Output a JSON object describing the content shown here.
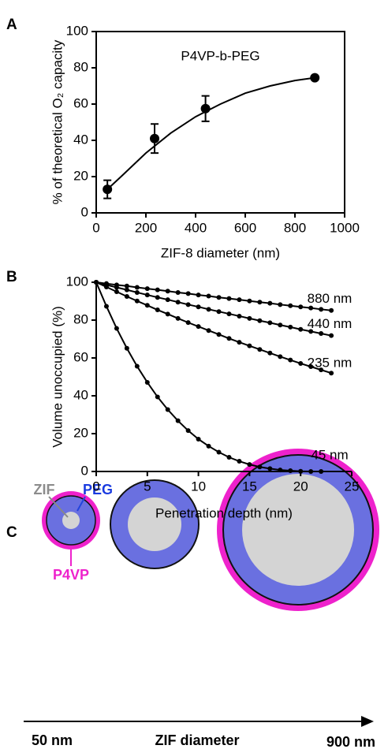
{
  "chart_data": [
    {
      "type": "scatter",
      "panel_label": "A",
      "title": "P4VP-b-PEG",
      "x_label": "ZIF-8 diameter (nm)",
      "y_label": "% of theoretical O₂ capacity",
      "x": [
        45,
        235,
        440,
        880
      ],
      "values": [
        13,
        41,
        57.5,
        74.5
      ],
      "errors": [
        5,
        8,
        7,
        0
      ],
      "color": "#000000",
      "fit": {
        "x": [
          45,
          100,
          200,
          300,
          400,
          500,
          600,
          700,
          800,
          880
        ],
        "values": [
          13,
          20,
          33,
          44,
          53,
          60,
          66,
          70,
          73,
          74.5
        ]
      },
      "xlim": [
        0,
        1000
      ],
      "xticks": [
        0,
        200,
        400,
        600,
        800,
        1000
      ],
      "ylim": [
        0,
        100
      ],
      "yticks": [
        0,
        20,
        40,
        60,
        80,
        100
      ],
      "frame": true
    },
    {
      "type": "line",
      "panel_label": "B",
      "x_label": "Penetration depth (nm)",
      "y_label": "Volume unoccupied (%)",
      "x": [
        0,
        1,
        2,
        3,
        4,
        5,
        6,
        7,
        8,
        9,
        10,
        11,
        12,
        13,
        14,
        15,
        16,
        17,
        18,
        19,
        20,
        21,
        22,
        23
      ],
      "series": [
        {
          "name": "880 nm",
          "color": "#000000",
          "values": [
            100,
            99.3,
            98.6,
            98.0,
            97.3,
            96.6,
            96.0,
            95.3,
            94.6,
            94.0,
            93.3,
            92.7,
            92.0,
            91.4,
            90.8,
            90.1,
            89.5,
            88.9,
            88.2,
            87.6,
            87.0,
            86.4,
            85.7,
            85.1
          ]
        },
        {
          "name": "440 nm",
          "color": "#000000",
          "values": [
            100,
            98.6,
            97.3,
            96.0,
            94.6,
            93.3,
            92.0,
            90.8,
            89.5,
            88.2,
            87.0,
            85.7,
            84.5,
            83.3,
            82.1,
            80.9,
            79.7,
            78.6,
            77.4,
            76.3,
            75.1,
            74.0,
            72.9,
            71.8
          ]
        },
        {
          "name": "235 nm",
          "color": "#000000",
          "values": [
            100,
            97.5,
            95.0,
            92.5,
            90.1,
            87.8,
            85.4,
            83.2,
            80.9,
            78.7,
            76.6,
            74.5,
            72.4,
            70.3,
            68.3,
            66.4,
            64.5,
            62.6,
            60.7,
            58.9,
            57.1,
            55.4,
            53.7,
            52.0
          ]
        },
        {
          "name": "45 nm",
          "color": "#000000",
          "values": [
            100,
            87.3,
            75.6,
            65.1,
            55.6,
            47.1,
            39.4,
            32.7,
            26.8,
            21.6,
            17.1,
            13.4,
            10.2,
            7.5,
            5.4,
            3.7,
            2.4,
            1.5,
            0.8,
            0.4,
            0.1,
            0.0,
            0.0,
            null
          ]
        }
      ],
      "xlim": [
        0,
        25
      ],
      "xticks": [
        0,
        5,
        10,
        15,
        20,
        25
      ],
      "ylim": [
        0,
        100
      ],
      "yticks": [
        0,
        20,
        40,
        60,
        80,
        100
      ],
      "frame": false
    }
  ],
  "diagram": {
    "panel_label": "C",
    "labels": {
      "zif": "ZIF",
      "peg": "PEG",
      "p4vp": "P4VP"
    },
    "axis": {
      "start": "50 nm",
      "title": "ZIF diameter",
      "end": "900 nm"
    }
  }
}
